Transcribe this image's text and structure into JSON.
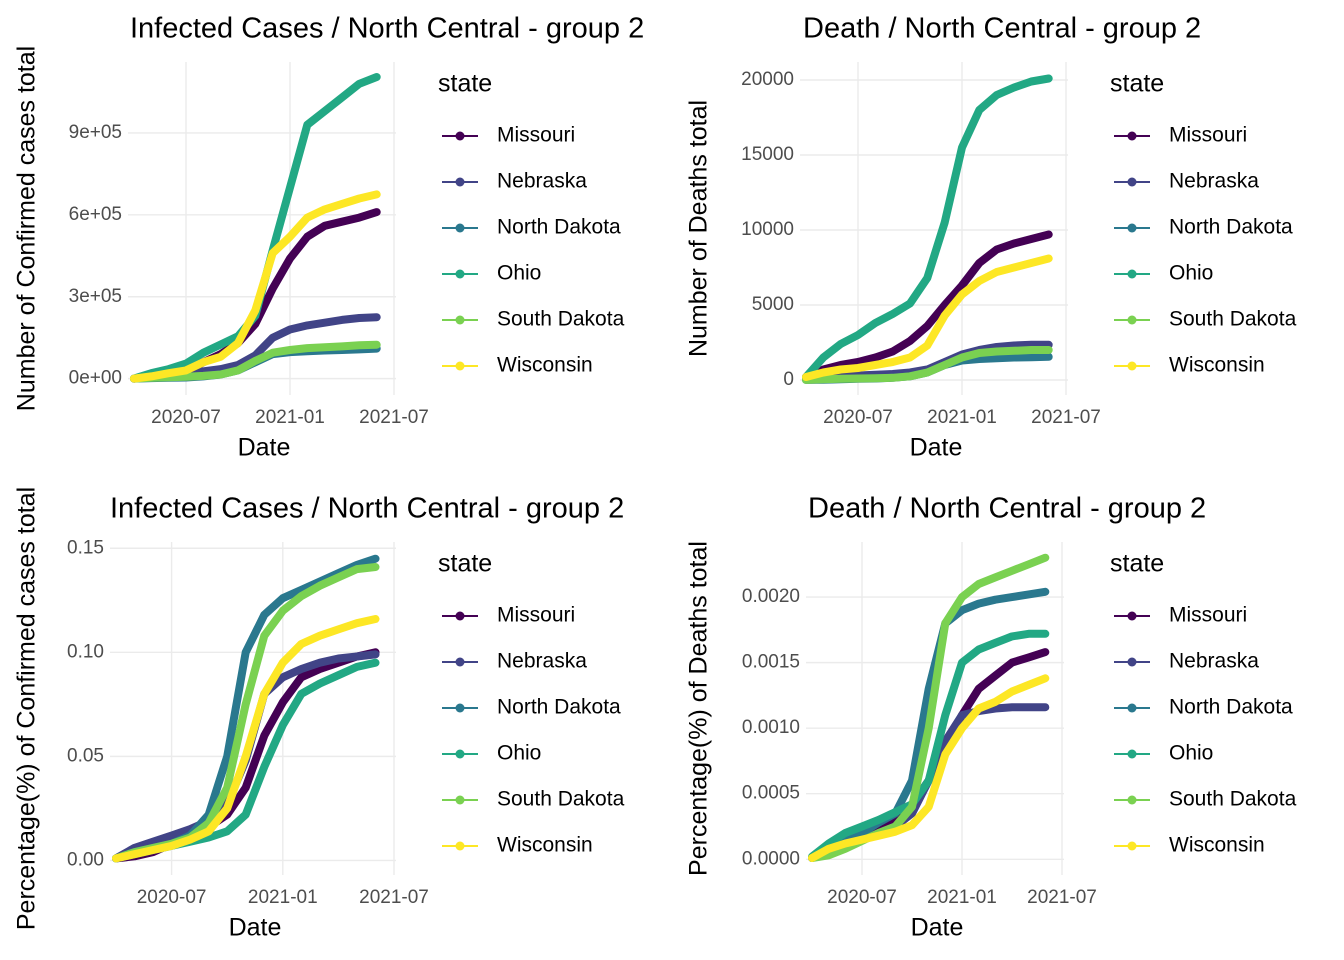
{
  "chart_data": [
    {
      "type": "line",
      "title": "Infected Cases / North Central - group 2",
      "x_label": "Date",
      "y_label": "Number of Confirmed cases total",
      "legend_title": "state",
      "x": [
        "2020-04",
        "2020-05",
        "2020-06",
        "2020-07",
        "2020-08",
        "2020-09",
        "2020-10",
        "2020-11",
        "2020-12",
        "2021-01",
        "2021-02",
        "2021-03",
        "2021-04",
        "2021-05",
        "2021-06"
      ],
      "xlim": [
        "2020-04",
        "2021-07"
      ],
      "xticks": [
        "2020-07",
        "2021-01",
        "2021-07"
      ],
      "ylim": [
        -60000,
        1160000
      ],
      "yticks": [
        {
          "value": 0,
          "label": "0e+00"
        },
        {
          "value": 300000,
          "label": "3e+05"
        },
        {
          "value": 600000,
          "label": "6e+05"
        },
        {
          "value": 900000,
          "label": "9e+05"
        }
      ],
      "grid": true,
      "series": [
        {
          "name": "Missouri",
          "color": "#440154",
          "values": [
            0,
            10000,
            15000,
            25000,
            60000,
            90000,
            130000,
            200000,
            330000,
            440000,
            520000,
            560000,
            575000,
            590000,
            610000
          ]
        },
        {
          "name": "Nebraska",
          "color": "#414487",
          "values": [
            0,
            8000,
            15000,
            20000,
            27000,
            35000,
            50000,
            85000,
            150000,
            180000,
            195000,
            205000,
            215000,
            222000,
            225000
          ]
        },
        {
          "name": "North Dakota",
          "color": "#2A788E",
          "values": [
            0,
            2000,
            3000,
            4000,
            8000,
            15000,
            30000,
            60000,
            90000,
            97000,
            100000,
            103000,
            105000,
            107000,
            110000
          ]
        },
        {
          "name": "Ohio",
          "color": "#22A884",
          "values": [
            0,
            20000,
            35000,
            55000,
            95000,
            125000,
            155000,
            230000,
            470000,
            700000,
            930000,
            980000,
            1030000,
            1080000,
            1105000
          ]
        },
        {
          "name": "South Dakota",
          "color": "#7AD151",
          "values": [
            0,
            3000,
            5000,
            7000,
            10000,
            15000,
            30000,
            65000,
            95000,
            105000,
            112000,
            115000,
            118000,
            122000,
            124000
          ]
        },
        {
          "name": "Wisconsin",
          "color": "#FDE725",
          "values": [
            0,
            8000,
            20000,
            30000,
            60000,
            80000,
            130000,
            250000,
            460000,
            520000,
            590000,
            620000,
            640000,
            660000,
            675000
          ]
        }
      ]
    },
    {
      "type": "line",
      "title": "Death / North Central - group 2",
      "x_label": "Date",
      "y_label": "Number of Deaths total",
      "legend_title": "state",
      "x": [
        "2020-04",
        "2020-05",
        "2020-06",
        "2020-07",
        "2020-08",
        "2020-09",
        "2020-10",
        "2020-11",
        "2020-12",
        "2021-01",
        "2021-02",
        "2021-03",
        "2021-04",
        "2021-05",
        "2021-06"
      ],
      "xlim": [
        "2020-04",
        "2021-07"
      ],
      "xticks": [
        "2020-07",
        "2021-01",
        "2021-07"
      ],
      "ylim": [
        -1000,
        21200
      ],
      "yticks": [
        0,
        5000,
        10000,
        15000,
        20000
      ],
      "grid": true,
      "series": [
        {
          "name": "Missouri",
          "color": "#440154",
          "values": [
            200,
            700,
            1000,
            1200,
            1500,
            1900,
            2600,
            3600,
            5000,
            6300,
            7800,
            8700,
            9100,
            9400,
            9700
          ]
        },
        {
          "name": "Nebraska",
          "color": "#414487",
          "values": [
            50,
            100,
            200,
            300,
            350,
            400,
            500,
            700,
            1200,
            1700,
            2000,
            2200,
            2300,
            2350,
            2350
          ]
        },
        {
          "name": "North Dakota",
          "color": "#2A788E",
          "values": [
            10,
            20,
            50,
            80,
            100,
            150,
            250,
            500,
            1000,
            1300,
            1400,
            1450,
            1500,
            1520,
            1550
          ]
        },
        {
          "name": "Ohio",
          "color": "#22A884",
          "values": [
            200,
            1500,
            2400,
            3000,
            3800,
            4400,
            5100,
            6800,
            10500,
            15500,
            18000,
            19000,
            19500,
            19900,
            20100
          ]
        },
        {
          "name": "South Dakota",
          "color": "#7AD151",
          "values": [
            10,
            50,
            80,
            100,
            120,
            150,
            250,
            500,
            1000,
            1500,
            1800,
            1900,
            1950,
            2000,
            2000
          ]
        },
        {
          "name": "Wisconsin",
          "color": "#FDE725",
          "values": [
            200,
            500,
            700,
            800,
            1000,
            1200,
            1500,
            2300,
            4300,
            5700,
            6600,
            7200,
            7500,
            7800,
            8100
          ]
        }
      ]
    },
    {
      "type": "line",
      "title": "Infected Cases / North Central - group 2",
      "x_label": "Date",
      "y_label": "Percentage(%) of Confirmed cases total",
      "legend_title": "state",
      "x": [
        "2020-04",
        "2020-05",
        "2020-06",
        "2020-07",
        "2020-08",
        "2020-09",
        "2020-10",
        "2020-11",
        "2020-12",
        "2021-01",
        "2021-02",
        "2021-03",
        "2021-04",
        "2021-05",
        "2021-06"
      ],
      "xlim": [
        "2020-04",
        "2021-07"
      ],
      "xticks": [
        "2020-07",
        "2021-01",
        "2021-07"
      ],
      "ylim": [
        -0.007,
        0.153
      ],
      "yticks": [
        {
          "value": 0,
          "label": "0.00"
        },
        0.05,
        {
          "value": 0.1,
          "label": "0.10"
        },
        0.15
      ],
      "grid": true,
      "series": [
        {
          "name": "Missouri",
          "color": "#440154",
          "values": [
            0.001,
            0.002,
            0.004,
            0.008,
            0.012,
            0.016,
            0.022,
            0.035,
            0.06,
            0.076,
            0.088,
            0.092,
            0.095,
            0.098,
            0.1
          ]
        },
        {
          "name": "Nebraska",
          "color": "#414487",
          "values": [
            0.001,
            0.006,
            0.009,
            0.012,
            0.015,
            0.019,
            0.027,
            0.048,
            0.08,
            0.088,
            0.092,
            0.095,
            0.097,
            0.098,
            0.099
          ]
        },
        {
          "name": "North Dakota",
          "color": "#2A788E",
          "values": [
            0.001,
            0.004,
            0.006,
            0.008,
            0.012,
            0.022,
            0.05,
            0.1,
            0.118,
            0.126,
            0.13,
            0.134,
            0.138,
            0.142,
            0.145
          ]
        },
        {
          "name": "Ohio",
          "color": "#22A884",
          "values": [
            0.001,
            0.003,
            0.005,
            0.007,
            0.009,
            0.011,
            0.014,
            0.022,
            0.045,
            0.065,
            0.08,
            0.085,
            0.089,
            0.093,
            0.095
          ]
        },
        {
          "name": "South Dakota",
          "color": "#7AD151",
          "values": [
            0.001,
            0.004,
            0.006,
            0.008,
            0.011,
            0.018,
            0.035,
            0.075,
            0.108,
            0.12,
            0.127,
            0.132,
            0.136,
            0.14,
            0.141
          ]
        },
        {
          "name": "Wisconsin",
          "color": "#FDE725",
          "values": [
            0.001,
            0.003,
            0.005,
            0.007,
            0.01,
            0.014,
            0.025,
            0.05,
            0.08,
            0.095,
            0.104,
            0.108,
            0.111,
            0.114,
            0.116
          ]
        }
      ]
    },
    {
      "type": "line",
      "title": "Death / North Central - group 2",
      "x_label": "Date",
      "y_label": "Percentage(%) of Deaths total",
      "legend_title": "state",
      "x": [
        "2020-04",
        "2020-05",
        "2020-06",
        "2020-07",
        "2020-08",
        "2020-09",
        "2020-10",
        "2020-11",
        "2020-12",
        "2021-01",
        "2021-02",
        "2021-03",
        "2021-04",
        "2021-05",
        "2021-06"
      ],
      "xlim": [
        "2020-04",
        "2021-07"
      ],
      "xticks": [
        "2020-07",
        "2021-01",
        "2021-07"
      ],
      "ylim": [
        -0.00012,
        0.00242
      ],
      "yticks": [
        {
          "value": 0,
          "label": "0.0000"
        },
        {
          "value": 0.0005,
          "label": "0.0005"
        },
        {
          "value": 0.001,
          "label": "0.0010"
        },
        {
          "value": 0.0015,
          "label": "0.0015"
        },
        {
          "value": 0.002,
          "label": "0.0020"
        }
      ],
      "grid": true,
      "series": [
        {
          "name": "Missouri",
          "color": "#440154",
          "values": [
            1e-05,
            0.0001,
            0.00015,
            0.00019,
            0.00024,
            0.00031,
            0.00042,
            0.0006,
            0.00085,
            0.0011,
            0.0013,
            0.0014,
            0.0015,
            0.00154,
            0.00158
          ]
        },
        {
          "name": "Nebraska",
          "color": "#414487",
          "values": [
            1e-05,
            5e-05,
            0.0001,
            0.00015,
            0.0002,
            0.00025,
            0.00035,
            0.0006,
            0.0009,
            0.0011,
            0.00113,
            0.00115,
            0.00116,
            0.00116,
            0.00116
          ]
        },
        {
          "name": "North Dakota",
          "color": "#2A788E",
          "values": [
            1e-05,
            0.0001,
            0.00015,
            0.0002,
            0.00028,
            0.00035,
            0.0006,
            0.0013,
            0.0018,
            0.0019,
            0.00195,
            0.00198,
            0.002,
            0.00202,
            0.00204
          ]
        },
        {
          "name": "Ohio",
          "color": "#22A884",
          "values": [
            2e-05,
            0.00012,
            0.0002,
            0.00025,
            0.0003,
            0.00036,
            0.00042,
            0.0006,
            0.0011,
            0.0015,
            0.0016,
            0.00165,
            0.0017,
            0.00172,
            0.00172
          ]
        },
        {
          "name": "South Dakota",
          "color": "#7AD151",
          "values": [
            1e-05,
            3e-05,
            8e-05,
            0.00014,
            0.0002,
            0.00025,
            0.0004,
            0.001,
            0.0018,
            0.002,
            0.0021,
            0.00215,
            0.0022,
            0.00225,
            0.0023
          ]
        },
        {
          "name": "Wisconsin",
          "color": "#FDE725",
          "values": [
            1e-05,
            8e-05,
            0.00012,
            0.00015,
            0.00018,
            0.00021,
            0.00026,
            0.0004,
            0.0008,
            0.001,
            0.00115,
            0.0012,
            0.00128,
            0.00133,
            0.00138
          ]
        }
      ]
    }
  ]
}
